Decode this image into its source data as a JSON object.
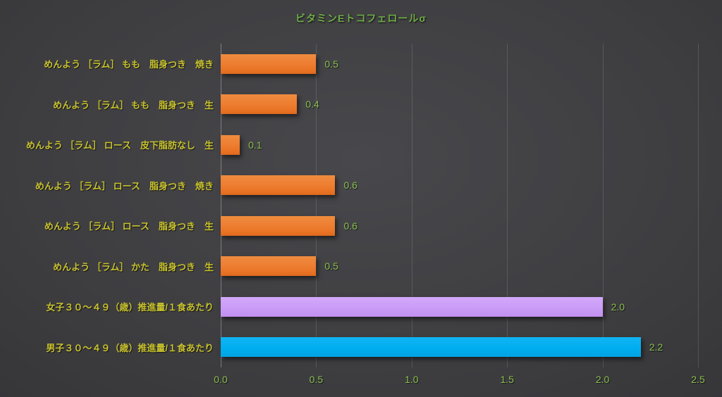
{
  "chart_data": {
    "type": "bar",
    "orientation": "horizontal",
    "title": "ビタミンEトコフェロールσ",
    "categories": [
      "めんよう ［ラム］ もも　脂身つき　焼き",
      "めんよう ［ラム］ もも　脂身つき　生",
      "めんよう ［ラム］ ロース　皮下脂肪なし　生",
      "めんよう ［ラム］ ロース　脂身つき　焼き",
      "めんよう ［ラム］ ロース　脂身つき　生",
      "めんよう ［ラム］ かた　脂身つき　生",
      "女子３０～４９（歳）推進量/１食あたり",
      "男子３０～４９（歳）推進量/１食あたり"
    ],
    "categories_order": "top-to-bottom",
    "values": [
      0.5,
      0.4,
      0.1,
      0.6,
      0.6,
      0.5,
      2.0,
      2.2
    ],
    "value_labels": [
      "0.5",
      "0.4",
      "0.1",
      "0.6",
      "0.6",
      "0.5",
      "2.0",
      "2.2"
    ],
    "bar_colors": [
      "#ED7D31",
      "#ED7D31",
      "#ED7D31",
      "#ED7D31",
      "#ED7D31",
      "#ED7D31",
      "#CA9CF8",
      "#00AEEF"
    ],
    "xlim": [
      0,
      2.5
    ],
    "x_ticks": [
      0.0,
      0.5,
      1.0,
      1.5,
      2.0,
      2.5
    ],
    "x_tick_labels": [
      "0.0",
      "0.5",
      "1.0",
      "1.5",
      "2.0",
      "2.5"
    ],
    "xlabel": "",
    "ylabel": "",
    "grid": "vertical-only",
    "legend": false
  },
  "colors": {
    "background_center": "#48484c",
    "background_edge": "#262629",
    "title_text": "#6FAD47",
    "category_text": "#C8C22E",
    "value_text": "#8ABF4F",
    "tick_text": "#8ABF4F",
    "gridline": "rgba(255,255,255,0.13)",
    "axis_line": "rgba(255,255,255,0.32)",
    "bar_orange": "#ED7D31",
    "bar_purple": "#CA9CF8",
    "bar_blue": "#00AEEF"
  }
}
